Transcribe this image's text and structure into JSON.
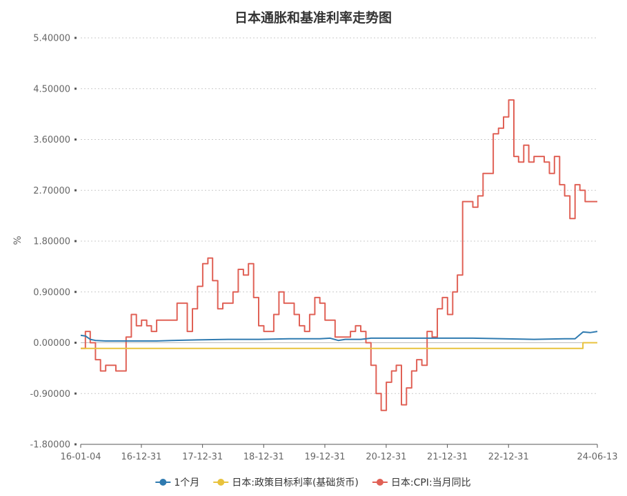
{
  "chart_data": {
    "type": "line",
    "title": "日本通胀和基准利率走势图",
    "ylabel": "%",
    "ylim": [
      -1.8,
      5.4
    ],
    "yticks": [
      -1.8,
      -0.9,
      0.0,
      0.9,
      1.8,
      2.7,
      3.6,
      4.5,
      5.4
    ],
    "ytick_labels": [
      "-1.80000",
      "-0.90000",
      "0.00000",
      "0.90000",
      "1.80000",
      "2.70000",
      "3.60000",
      "4.50000",
      "5.40000"
    ],
    "xlim": [
      "2016-01-04",
      "2024-06-13"
    ],
    "xticks": [
      {
        "date": "2016-01-04",
        "label": "16-01-04"
      },
      {
        "date": "2016-12-31",
        "label": "16-12-31"
      },
      {
        "date": "2017-12-31",
        "label": "17-12-31"
      },
      {
        "date": "2018-12-31",
        "label": "18-12-31"
      },
      {
        "date": "2019-12-31",
        "label": "19-12-31"
      },
      {
        "date": "2020-12-31",
        "label": "20-12-31"
      },
      {
        "date": "2021-12-31",
        "label": "21-12-31"
      },
      {
        "date": "2022-12-31",
        "label": "22-12-31"
      },
      {
        "date": "2024-06-13",
        "label": "24-06-13"
      }
    ],
    "grid": true,
    "legend_position": "bottom",
    "series": [
      {
        "name": "1个月",
        "color": "#2e7ab0",
        "step": false,
        "points": [
          [
            "2016-01-04",
            0.13
          ],
          [
            "2016-02-01",
            0.12
          ],
          [
            "2016-03-01",
            0.06
          ],
          [
            "2016-04-01",
            0.04
          ],
          [
            "2016-06-01",
            0.03
          ],
          [
            "2016-10-01",
            0.03
          ],
          [
            "2017-01-01",
            0.03
          ],
          [
            "2017-04-01",
            0.03
          ],
          [
            "2017-07-01",
            0.04
          ],
          [
            "2017-12-01",
            0.05
          ],
          [
            "2018-06-01",
            0.06
          ],
          [
            "2018-12-01",
            0.06
          ],
          [
            "2019-06-01",
            0.07
          ],
          [
            "2019-12-01",
            0.07
          ],
          [
            "2020-02-01",
            0.08
          ],
          [
            "2020-03-20",
            0.04
          ],
          [
            "2020-05-01",
            0.06
          ],
          [
            "2020-08-01",
            0.06
          ],
          [
            "2020-10-01",
            0.08
          ],
          [
            "2021-06-01",
            0.08
          ],
          [
            "2021-12-01",
            0.08
          ],
          [
            "2022-06-01",
            0.08
          ],
          [
            "2022-12-01",
            0.07
          ],
          [
            "2023-06-01",
            0.06
          ],
          [
            "2023-12-01",
            0.07
          ],
          [
            "2024-02-01",
            0.07
          ],
          [
            "2024-03-20",
            0.19
          ],
          [
            "2024-05-01",
            0.18
          ],
          [
            "2024-06-13",
            0.2
          ]
        ]
      },
      {
        "name": "日本:政策目标利率(基础货币)",
        "color": "#e8c23c",
        "step": true,
        "points": [
          [
            "2016-01-04",
            -0.1
          ],
          [
            "2024-03-19",
            0.0
          ],
          [
            "2024-06-13",
            0.0
          ]
        ]
      },
      {
        "name": "日本:CPI:当月同比",
        "color": "#e06055",
        "step": true,
        "points": [
          [
            "2016-01-04",
            -0.1
          ],
          [
            "2016-02-01",
            0.2
          ],
          [
            "2016-03-01",
            0.0
          ],
          [
            "2016-04-01",
            -0.3
          ],
          [
            "2016-05-01",
            -0.5
          ],
          [
            "2016-06-01",
            -0.4
          ],
          [
            "2016-08-01",
            -0.5
          ],
          [
            "2016-10-01",
            0.1
          ],
          [
            "2016-11-01",
            0.5
          ],
          [
            "2016-12-01",
            0.3
          ],
          [
            "2017-01-01",
            0.4
          ],
          [
            "2017-02-01",
            0.3
          ],
          [
            "2017-03-01",
            0.2
          ],
          [
            "2017-04-01",
            0.4
          ],
          [
            "2017-08-01",
            0.7
          ],
          [
            "2017-10-01",
            0.2
          ],
          [
            "2017-11-01",
            0.6
          ],
          [
            "2017-12-01",
            1.0
          ],
          [
            "2018-01-01",
            1.4
          ],
          [
            "2018-02-01",
            1.5
          ],
          [
            "2018-03-01",
            1.1
          ],
          [
            "2018-04-01",
            0.6
          ],
          [
            "2018-05-01",
            0.7
          ],
          [
            "2018-07-01",
            0.9
          ],
          [
            "2018-08-01",
            1.3
          ],
          [
            "2018-09-01",
            1.2
          ],
          [
            "2018-10-01",
            1.4
          ],
          [
            "2018-11-01",
            0.8
          ],
          [
            "2018-12-01",
            0.3
          ],
          [
            "2019-01-01",
            0.2
          ],
          [
            "2019-03-01",
            0.5
          ],
          [
            "2019-04-01",
            0.9
          ],
          [
            "2019-05-01",
            0.7
          ],
          [
            "2019-07-01",
            0.5
          ],
          [
            "2019-08-01",
            0.3
          ],
          [
            "2019-09-01",
            0.2
          ],
          [
            "2019-10-01",
            0.5
          ],
          [
            "2019-11-01",
            0.8
          ],
          [
            "2019-12-01",
            0.7
          ],
          [
            "2020-01-01",
            0.4
          ],
          [
            "2020-03-01",
            0.1
          ],
          [
            "2020-06-01",
            0.2
          ],
          [
            "2020-07-01",
            0.3
          ],
          [
            "2020-08-01",
            0.2
          ],
          [
            "2020-09-01",
            0.0
          ],
          [
            "2020-10-01",
            -0.4
          ],
          [
            "2020-11-01",
            -0.9
          ],
          [
            "2020-12-01",
            -1.2
          ],
          [
            "2021-01-01",
            -0.7
          ],
          [
            "2021-02-01",
            -0.5
          ],
          [
            "2021-03-01",
            -0.4
          ],
          [
            "2021-04-01",
            -1.1
          ],
          [
            "2021-05-01",
            -0.8
          ],
          [
            "2021-06-01",
            -0.5
          ],
          [
            "2021-07-01",
            -0.3
          ],
          [
            "2021-08-01",
            -0.4
          ],
          [
            "2021-09-01",
            0.2
          ],
          [
            "2021-10-01",
            0.1
          ],
          [
            "2021-11-01",
            0.6
          ],
          [
            "2021-12-01",
            0.8
          ],
          [
            "2022-01-01",
            0.5
          ],
          [
            "2022-02-01",
            0.9
          ],
          [
            "2022-03-01",
            1.2
          ],
          [
            "2022-04-01",
            2.5
          ],
          [
            "2022-06-01",
            2.4
          ],
          [
            "2022-07-01",
            2.6
          ],
          [
            "2022-08-01",
            3.0
          ],
          [
            "2022-10-01",
            3.7
          ],
          [
            "2022-11-01",
            3.8
          ],
          [
            "2022-12-01",
            4.0
          ],
          [
            "2023-01-01",
            4.3
          ],
          [
            "2023-02-01",
            3.3
          ],
          [
            "2023-03-01",
            3.2
          ],
          [
            "2023-04-01",
            3.5
          ],
          [
            "2023-05-01",
            3.2
          ],
          [
            "2023-06-01",
            3.3
          ],
          [
            "2023-08-01",
            3.2
          ],
          [
            "2023-09-01",
            3.0
          ],
          [
            "2023-10-01",
            3.3
          ],
          [
            "2023-11-01",
            2.8
          ],
          [
            "2023-12-01",
            2.6
          ],
          [
            "2024-01-01",
            2.2
          ],
          [
            "2024-02-01",
            2.8
          ],
          [
            "2024-03-01",
            2.7
          ],
          [
            "2024-04-01",
            2.5
          ],
          [
            "2024-06-13",
            2.5
          ]
        ]
      }
    ]
  }
}
